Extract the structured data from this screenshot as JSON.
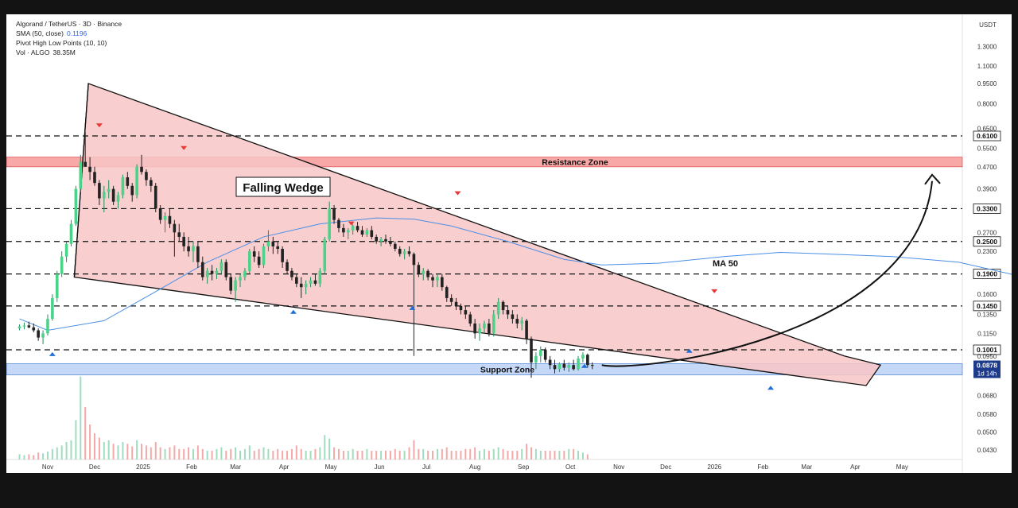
{
  "legend": {
    "symbol": "Algorand / TetherUS · 3D · Binance",
    "sma_label": "SMA (50, close)",
    "sma_value": "0.1196",
    "pivot_label": "Pivot High Low Points (10, 10)",
    "vol_label": "Vol · ALGO",
    "vol_value": "38.35M"
  },
  "currency": "USDT",
  "annotations": {
    "wedge_label": "Falling Wedge",
    "resistance_label": "Resistance Zone",
    "support_label": "Support Zone",
    "ma_label": "MA 50"
  },
  "colors": {
    "up": "#26a69a",
    "up_body": "#4cd38a",
    "down": "#ef5350",
    "down_body": "#222222",
    "wedge_fill": "#f7c6c6",
    "resistance_fill": "#f9a8a8",
    "support_fill": "#c5d8f7",
    "ma": "#4a8fe7"
  },
  "chart_data": {
    "type": "candlestick",
    "y_scale": "log",
    "y_ticks": [
      "1.3000",
      "1.1000",
      "0.9500",
      "0.8000",
      "0.6500",
      "0.5500",
      "0.4700",
      "0.3900",
      "0.2700",
      "0.2300",
      "0.1600",
      "0.1350",
      "0.1150",
      "0.0950",
      "0.0680",
      "0.0580",
      "0.0500",
      "0.0430"
    ],
    "x_ticks": [
      "Nov",
      "Dec",
      "2025",
      "Feb",
      "Mar",
      "Apr",
      "May",
      "Jun",
      "Jul",
      "Aug",
      "Sep",
      "Oct",
      "Nov",
      "Dec",
      "2026",
      "Feb",
      "Mar",
      "Apr",
      "May"
    ],
    "horizontal_levels": [
      {
        "label": "0.6100",
        "value": 0.61
      },
      {
        "label": "0.3300",
        "value": 0.33
      },
      {
        "label": "0.2500",
        "value": 0.25
      },
      {
        "label": "0.1900",
        "value": 0.19
      },
      {
        "label": "0.1450",
        "value": 0.145
      },
      {
        "label": "0.1001",
        "value": 0.1001
      }
    ],
    "current_price": {
      "label": "0.0878",
      "value": 0.0878,
      "countdown": "1d 14h"
    },
    "resistance_zone": [
      0.47,
      0.51
    ],
    "support_zone": [
      0.081,
      0.089
    ],
    "wedge": {
      "upper_line": [
        {
          "date": "Nov 27 2024",
          "price": 0.95
        },
        {
          "date": "Mar 25 2026",
          "price": 0.095
        }
      ],
      "lower_line": [
        {
          "date": "Nov 18 2024",
          "price": 0.185
        },
        {
          "date": "Apr 08 2026",
          "price": 0.074
        }
      ]
    },
    "projection_target": 0.47,
    "pivot_highs": [
      {
        "date": "Dec 04 2024",
        "price": 0.63
      },
      {
        "date": "Jan 27 2025",
        "price": 0.52
      },
      {
        "date": "May 14 2025",
        "price": 0.275
      },
      {
        "date": "Jul 21 2025",
        "price": 0.355
      },
      {
        "date": "Jan 01 2026",
        "price": 0.155
      }
    ],
    "pivot_lows": [
      {
        "date": "Nov 04 2024",
        "price": 0.105
      },
      {
        "date": "Apr 07 2025",
        "price": 0.15
      },
      {
        "date": "Jun 22 2025",
        "price": 0.155
      },
      {
        "date": "Oct 10 2025",
        "price": 0.095
      },
      {
        "date": "Dec 16 2025",
        "price": 0.108
      },
      {
        "date": "Feb 06 2026",
        "price": 0.079
      }
    ],
    "candles": [
      [
        0.12,
        0.124,
        0.118,
        0.122
      ],
      [
        0.122,
        0.126,
        0.119,
        0.123
      ],
      [
        0.123,
        0.127,
        0.12,
        0.121
      ],
      [
        0.121,
        0.125,
        0.116,
        0.118
      ],
      [
        0.118,
        0.12,
        0.108,
        0.111
      ],
      [
        0.111,
        0.118,
        0.105,
        0.115
      ],
      [
        0.115,
        0.135,
        0.113,
        0.13
      ],
      [
        0.13,
        0.16,
        0.128,
        0.155
      ],
      [
        0.155,
        0.195,
        0.15,
        0.19
      ],
      [
        0.19,
        0.23,
        0.185,
        0.22
      ],
      [
        0.22,
        0.25,
        0.21,
        0.245
      ],
      [
        0.245,
        0.3,
        0.24,
        0.29
      ],
      [
        0.29,
        0.4,
        0.285,
        0.39
      ],
      [
        0.39,
        0.52,
        0.38,
        0.49
      ],
      [
        0.49,
        0.63,
        0.47,
        0.47
      ],
      [
        0.47,
        0.51,
        0.42,
        0.45
      ],
      [
        0.45,
        0.47,
        0.4,
        0.41
      ],
      [
        0.41,
        0.42,
        0.34,
        0.36
      ],
      [
        0.36,
        0.4,
        0.32,
        0.38
      ],
      [
        0.38,
        0.42,
        0.36,
        0.39
      ],
      [
        0.39,
        0.4,
        0.34,
        0.35
      ],
      [
        0.35,
        0.38,
        0.33,
        0.37
      ],
      [
        0.37,
        0.44,
        0.36,
        0.43
      ],
      [
        0.43,
        0.45,
        0.39,
        0.4
      ],
      [
        0.4,
        0.41,
        0.35,
        0.37
      ],
      [
        0.37,
        0.48,
        0.36,
        0.47
      ],
      [
        0.47,
        0.52,
        0.44,
        0.45
      ],
      [
        0.45,
        0.46,
        0.4,
        0.42
      ],
      [
        0.42,
        0.43,
        0.38,
        0.4
      ],
      [
        0.4,
        0.41,
        0.32,
        0.33
      ],
      [
        0.33,
        0.34,
        0.29,
        0.3
      ],
      [
        0.3,
        0.32,
        0.27,
        0.31
      ],
      [
        0.31,
        0.33,
        0.28,
        0.29
      ],
      [
        0.29,
        0.3,
        0.22,
        0.27
      ],
      [
        0.27,
        0.29,
        0.25,
        0.26
      ],
      [
        0.26,
        0.27,
        0.23,
        0.24
      ],
      [
        0.24,
        0.26,
        0.22,
        0.23
      ],
      [
        0.23,
        0.25,
        0.21,
        0.24
      ],
      [
        0.24,
        0.25,
        0.2,
        0.21
      ],
      [
        0.21,
        0.22,
        0.18,
        0.185
      ],
      [
        0.185,
        0.2,
        0.175,
        0.195
      ],
      [
        0.195,
        0.205,
        0.18,
        0.19
      ],
      [
        0.19,
        0.2,
        0.182,
        0.195
      ],
      [
        0.195,
        0.215,
        0.19,
        0.21
      ],
      [
        0.21,
        0.215,
        0.18,
        0.185
      ],
      [
        0.185,
        0.19,
        0.16,
        0.165
      ],
      [
        0.165,
        0.185,
        0.15,
        0.18
      ],
      [
        0.18,
        0.19,
        0.17,
        0.185
      ],
      [
        0.185,
        0.2,
        0.18,
        0.195
      ],
      [
        0.195,
        0.235,
        0.19,
        0.23
      ],
      [
        0.23,
        0.24,
        0.21,
        0.22
      ],
      [
        0.22,
        0.23,
        0.2,
        0.205
      ],
      [
        0.205,
        0.245,
        0.2,
        0.24
      ],
      [
        0.24,
        0.275,
        0.23,
        0.25
      ],
      [
        0.25,
        0.26,
        0.225,
        0.24
      ],
      [
        0.24,
        0.25,
        0.225,
        0.235
      ],
      [
        0.235,
        0.24,
        0.2,
        0.21
      ],
      [
        0.21,
        0.215,
        0.19,
        0.195
      ],
      [
        0.195,
        0.2,
        0.18,
        0.185
      ],
      [
        0.185,
        0.19,
        0.17,
        0.175
      ],
      [
        0.175,
        0.185,
        0.155,
        0.17
      ],
      [
        0.17,
        0.18,
        0.16,
        0.175
      ],
      [
        0.175,
        0.185,
        0.17,
        0.18
      ],
      [
        0.18,
        0.19,
        0.172,
        0.175
      ],
      [
        0.175,
        0.2,
        0.17,
        0.195
      ],
      [
        0.195,
        0.26,
        0.19,
        0.255
      ],
      [
        0.255,
        0.35,
        0.25,
        0.33
      ],
      [
        0.33,
        0.34,
        0.29,
        0.3
      ],
      [
        0.3,
        0.305,
        0.27,
        0.28
      ],
      [
        0.28,
        0.29,
        0.26,
        0.27
      ],
      [
        0.27,
        0.28,
        0.255,
        0.275
      ],
      [
        0.275,
        0.29,
        0.265,
        0.285
      ],
      [
        0.285,
        0.295,
        0.27,
        0.275
      ],
      [
        0.275,
        0.285,
        0.26,
        0.265
      ],
      [
        0.265,
        0.28,
        0.26,
        0.275
      ],
      [
        0.275,
        0.285,
        0.255,
        0.26
      ],
      [
        0.26,
        0.265,
        0.245,
        0.25
      ],
      [
        0.25,
        0.26,
        0.24,
        0.255
      ],
      [
        0.255,
        0.265,
        0.245,
        0.25
      ],
      [
        0.25,
        0.26,
        0.24,
        0.245
      ],
      [
        0.245,
        0.25,
        0.23,
        0.235
      ],
      [
        0.235,
        0.24,
        0.22,
        0.225
      ],
      [
        0.225,
        0.235,
        0.215,
        0.23
      ],
      [
        0.23,
        0.24,
        0.22,
        0.225
      ],
      [
        0.225,
        0.228,
        0.095,
        0.205
      ],
      [
        0.205,
        0.21,
        0.185,
        0.19
      ],
      [
        0.19,
        0.2,
        0.18,
        0.195
      ],
      [
        0.195,
        0.198,
        0.18,
        0.185
      ],
      [
        0.185,
        0.19,
        0.17,
        0.18
      ],
      [
        0.18,
        0.19,
        0.17,
        0.185
      ],
      [
        0.185,
        0.19,
        0.165,
        0.17
      ],
      [
        0.17,
        0.172,
        0.15,
        0.155
      ],
      [
        0.155,
        0.16,
        0.145,
        0.15
      ],
      [
        0.15,
        0.155,
        0.14,
        0.145
      ],
      [
        0.145,
        0.148,
        0.135,
        0.14
      ],
      [
        0.14,
        0.145,
        0.13,
        0.135
      ],
      [
        0.135,
        0.138,
        0.122,
        0.125
      ],
      [
        0.125,
        0.13,
        0.11,
        0.115
      ],
      [
        0.115,
        0.125,
        0.108,
        0.12
      ],
      [
        0.12,
        0.128,
        0.115,
        0.125
      ],
      [
        0.125,
        0.13,
        0.112,
        0.115
      ],
      [
        0.115,
        0.14,
        0.112,
        0.135
      ],
      [
        0.135,
        0.155,
        0.13,
        0.15
      ],
      [
        0.15,
        0.152,
        0.135,
        0.14
      ],
      [
        0.14,
        0.145,
        0.13,
        0.135
      ],
      [
        0.135,
        0.14,
        0.125,
        0.13
      ],
      [
        0.13,
        0.135,
        0.12,
        0.125
      ],
      [
        0.125,
        0.132,
        0.118,
        0.128
      ],
      [
        0.128,
        0.13,
        0.105,
        0.11
      ],
      [
        0.11,
        0.112,
        0.079,
        0.09
      ],
      [
        0.09,
        0.098,
        0.085,
        0.095
      ],
      [
        0.095,
        0.103,
        0.09,
        0.1
      ],
      [
        0.1,
        0.102,
        0.09,
        0.092
      ],
      [
        0.092,
        0.095,
        0.085,
        0.088
      ],
      [
        0.088,
        0.092,
        0.082,
        0.085
      ],
      [
        0.085,
        0.09,
        0.083,
        0.089
      ],
      [
        0.089,
        0.092,
        0.084,
        0.086
      ],
      [
        0.086,
        0.09,
        0.083,
        0.088
      ],
      [
        0.088,
        0.092,
        0.084,
        0.085
      ],
      [
        0.085,
        0.095,
        0.084,
        0.093
      ],
      [
        0.093,
        0.098,
        0.09,
        0.096
      ],
      [
        0.096,
        0.097,
        0.086,
        0.088
      ],
      [
        0.088,
        0.09,
        0.085,
        0.0878
      ]
    ],
    "ma50": [
      [
        0.13,
        0
      ],
      [
        0.118,
        6
      ],
      [
        0.128,
        18
      ],
      [
        0.16,
        28
      ],
      [
        0.21,
        40
      ],
      [
        0.26,
        52
      ],
      [
        0.29,
        64
      ],
      [
        0.305,
        76
      ],
      [
        0.302,
        84
      ],
      [
        0.285,
        92
      ],
      [
        0.25,
        104
      ],
      [
        0.215,
        116
      ],
      [
        0.205,
        124
      ],
      [
        0.208,
        136
      ],
      [
        0.22,
        150
      ],
      [
        0.228,
        162
      ],
      [
        0.225,
        172
      ],
      [
        0.22,
        186
      ],
      [
        0.21,
        200
      ],
      [
        0.185,
        214
      ],
      [
        0.16,
        226
      ],
      [
        0.14,
        236
      ],
      [
        0.122,
        246
      ]
    ],
    "volume": [
      6,
      5,
      6,
      5,
      8,
      7,
      9,
      12,
      14,
      16,
      20,
      22,
      45,
      95,
      60,
      40,
      30,
      25,
      20,
      22,
      18,
      16,
      20,
      18,
      15,
      22,
      18,
      16,
      14,
      20,
      14,
      12,
      14,
      16,
      12,
      12,
      14,
      12,
      16,
      12,
      10,
      10,
      12,
      14,
      10,
      12,
      14,
      10,
      12,
      16,
      10,
      12,
      14,
      12,
      10,
      12,
      10,
      10,
      12,
      16,
      12,
      10,
      10,
      12,
      14,
      28,
      24,
      14,
      12,
      10,
      10,
      12,
      10,
      10,
      12,
      10,
      10,
      10,
      10,
      10,
      12,
      10,
      10,
      14,
      22,
      12,
      12,
      10,
      10,
      12,
      12,
      14,
      10,
      10,
      10,
      12,
      12,
      14,
      10,
      12,
      10,
      12,
      14,
      12,
      10,
      10,
      10,
      12,
      18,
      14,
      12,
      10,
      10,
      10,
      10,
      10,
      10,
      12,
      12,
      10,
      8,
      6
    ]
  }
}
